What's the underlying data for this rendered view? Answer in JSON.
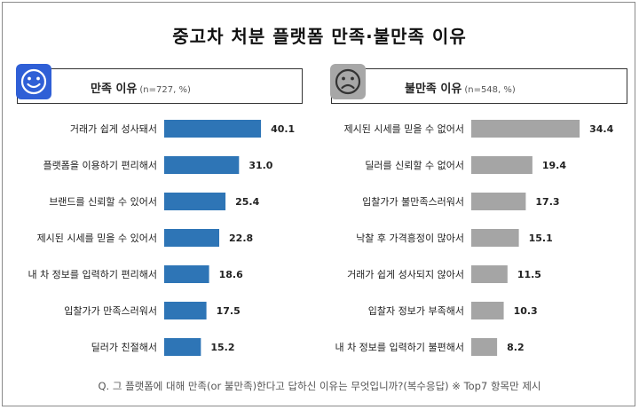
{
  "title": "중고차 처분 플랫폼 만족·불만족 이유",
  "left_panel": {
    "header": "만족 이유",
    "sub": "(n=727, %)",
    "icon": "smiley-face-icon",
    "color": "#2e75b6"
  },
  "right_panel": {
    "header": "불만족 이유",
    "sub": "(n=548, %)",
    "icon": "sad-face-icon",
    "color": "#a5a5a5"
  },
  "footer": "Q. 그 플랫폼에 대해 만족(or 불만족)한다고 답하신 이유는 무엇입니까?(복수응답) ※ Top7 항목만 제시",
  "chart_data": [
    {
      "type": "bar",
      "orientation": "horizontal",
      "title": "만족 이유",
      "categories": [
        "거래가 쉽게 성사돼서",
        "플랫폼을 이용하기 편리해서",
        "브랜드를 신뢰할 수 있어서",
        "제시된 시세를 믿을 수 있어서",
        "내 차 정보를 입력하기 편리해서",
        "입찰가가 만족스러워서",
        "딜러가 친절해서"
      ],
      "values": [
        40.1,
        31.0,
        25.4,
        22.8,
        18.6,
        17.5,
        15.2
      ],
      "value_labels": [
        "40.1",
        "31.0",
        "25.4",
        "22.8",
        "18.6",
        "17.5",
        "15.2"
      ]
    },
    {
      "type": "bar",
      "orientation": "horizontal",
      "title": "불만족 이유",
      "categories": [
        "제시된 시세를 믿을 수 없어서",
        "딜러를 신뢰할 수 없어서",
        "입찰가가 불만족스러워서",
        "낙찰 후 가격흥정이 많아서",
        "거래가 쉽게 성사되지 않아서",
        "입찰자 정보가 부족해서",
        "내 차 정보를 입력하기 불편해서"
      ],
      "values": [
        34.4,
        19.4,
        17.3,
        15.1,
        11.5,
        10.3,
        8.2
      ],
      "value_labels": [
        "34.4",
        "19.4",
        "17.3",
        "15.1",
        "11.5",
        "10.3",
        "8.2"
      ]
    }
  ]
}
